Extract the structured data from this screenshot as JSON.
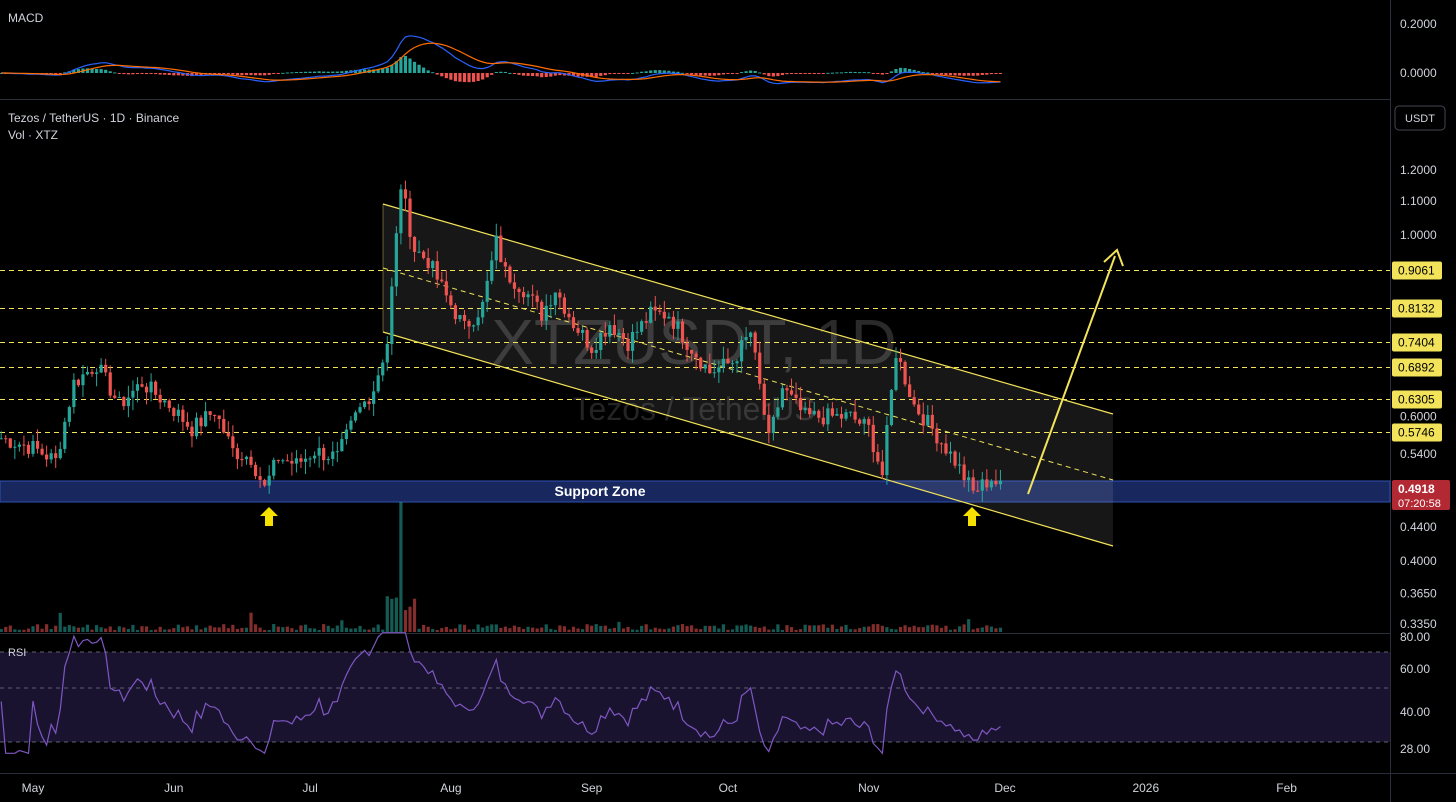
{
  "header": {
    "symbol_line": "Tezos / TetherUS · 1D · Binance",
    "volume_line": "Vol · XTZ",
    "watermark_symbol": "XTZUSDT, 1D",
    "watermark_name": "Tezos / TetherUS",
    "currency_button": "USDT"
  },
  "panes": {
    "macd_title": "MACD",
    "rsi_title": "RSI",
    "macd_ticks": [
      "0.2000",
      "0.0000"
    ],
    "rsi_ticks": [
      "80.00",
      "60.00",
      "40.00",
      "28.00"
    ]
  },
  "colors": {
    "up": "#26a69a",
    "down": "#ef5350",
    "channel": "#f2e35a",
    "support_zone": "#1e3a8a",
    "macd_line": "#2962ff",
    "signal_line": "#ff6d00",
    "rsi_line": "#7e57c2",
    "price_tag": "#b22833"
  },
  "chart_data": {
    "type": "candlestick",
    "pair": "XTZ/USDT",
    "interval": "1D",
    "exchange": "Binance",
    "x_axis_labels": [
      "May",
      "Jun",
      "Jul",
      "Aug",
      "Sep",
      "Oct",
      "Nov",
      "Dec",
      "2026",
      "Feb"
    ],
    "y_axis_ticks": [
      "1.2000",
      "1.1000",
      "1.0000",
      "0.6000",
      "0.5400",
      "0.4400",
      "0.4000",
      "0.3650",
      "0.3350"
    ],
    "y_scale": "log",
    "y_range": [
      0.33,
      1.28
    ],
    "current_price": "0.4918",
    "countdown": "07:20:58",
    "horizontal_levels": [
      "0.9061",
      "0.8132",
      "0.7404",
      "0.6892",
      "0.6305",
      "0.5746"
    ],
    "support_zone": {
      "label": "Support Zone",
      "low": 0.47,
      "high": 0.498
    },
    "descending_channel": {
      "upper": [
        [
          "2025-07-21",
          1.09
        ],
        [
          "2025-12-31",
          0.59
        ]
      ],
      "middle": [
        [
          "2025-07-21",
          0.9
        ],
        [
          "2025-12-31",
          0.505
        ]
      ],
      "lower": [
        [
          "2025-07-21",
          0.755
        ],
        [
          "2025-12-31",
          0.42
        ]
      ]
    },
    "projection_arrow": {
      "from": [
        "2025-12-04",
        0.49
      ],
      "to": [
        "2025-12-18",
        0.88
      ]
    },
    "bounce_markers": [
      "2025-06-20",
      "2025-11-25"
    ],
    "price_path": [
      [
        "2025-04-24",
        0.565
      ],
      [
        "2025-05-01",
        0.55
      ],
      [
        "2025-05-06",
        0.53
      ],
      [
        "2025-05-10",
        0.66
      ],
      [
        "2025-05-15",
        0.695
      ],
      [
        "2025-05-20",
        0.62
      ],
      [
        "2025-05-25",
        0.66
      ],
      [
        "2025-05-31",
        0.62
      ],
      [
        "2025-06-05",
        0.58
      ],
      [
        "2025-06-10",
        0.61
      ],
      [
        "2025-06-14",
        0.545
      ],
      [
        "2025-06-18",
        0.535
      ],
      [
        "2025-06-21",
        0.49
      ],
      [
        "2025-06-24",
        0.535
      ],
      [
        "2025-06-28",
        0.525
      ],
      [
        "2025-07-02",
        0.545
      ],
      [
        "2025-07-07",
        0.535
      ],
      [
        "2025-07-11",
        0.6
      ],
      [
        "2025-07-15",
        0.65
      ],
      [
        "2025-07-18",
        0.74
      ],
      [
        "2025-07-21",
        1.15
      ],
      [
        "2025-07-24",
        0.96
      ],
      [
        "2025-07-27",
        0.93
      ],
      [
        "2025-07-31",
        0.84
      ],
      [
        "2025-08-04",
        0.77
      ],
      [
        "2025-08-08",
        0.82
      ],
      [
        "2025-08-11",
        0.98
      ],
      [
        "2025-08-13",
        0.9
      ],
      [
        "2025-08-17",
        0.86
      ],
      [
        "2025-08-21",
        0.8
      ],
      [
        "2025-08-24",
        0.86
      ],
      [
        "2025-08-28",
        0.78
      ],
      [
        "2025-09-01",
        0.73
      ],
      [
        "2025-09-05",
        0.78
      ],
      [
        "2025-09-09",
        0.74
      ],
      [
        "2025-09-14",
        0.8
      ],
      [
        "2025-09-18",
        0.8
      ],
      [
        "2025-09-22",
        0.74
      ],
      [
        "2025-09-27",
        0.68
      ],
      [
        "2025-10-02",
        0.7
      ],
      [
        "2025-10-06",
        0.76
      ],
      [
        "2025-10-10",
        0.56
      ],
      [
        "2025-10-13",
        0.65
      ],
      [
        "2025-10-18",
        0.6
      ],
      [
        "2025-10-23",
        0.6
      ],
      [
        "2025-10-28",
        0.6
      ],
      [
        "2025-11-01",
        0.58
      ],
      [
        "2025-11-04",
        0.51
      ],
      [
        "2025-11-07",
        0.72
      ],
      [
        "2025-11-11",
        0.62
      ],
      [
        "2025-11-16",
        0.57
      ],
      [
        "2025-11-20",
        0.53
      ],
      [
        "2025-11-24",
        0.485
      ],
      [
        "2025-11-28",
        0.505
      ],
      [
        "2025-11-30",
        0.4918
      ]
    ],
    "volume_spike": {
      "date": "2025-07-21",
      "relative": 1.0
    }
  }
}
